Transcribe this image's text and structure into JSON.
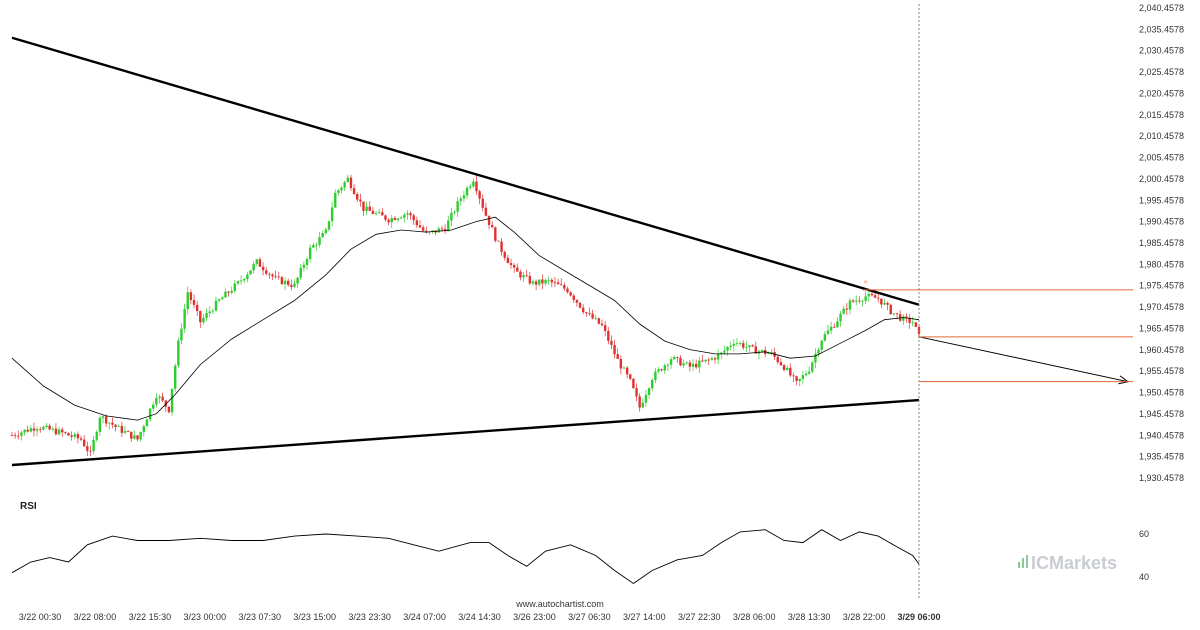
{
  "chart_data": [
    {
      "type": "candlestick",
      "title": "",
      "x_tick_labels": [
        "3/22 00:30",
        "3/22 08:00",
        "3/22 15:30",
        "3/23 00:00",
        "3/23 07:30",
        "3/23 15:00",
        "3/23 23:30",
        "3/24 07:00",
        "3/24 14:30",
        "3/26 23:00",
        "3/27 06:30",
        "3/27 14:00",
        "3/27 22:30",
        "3/28 06:00",
        "3/28 13:30",
        "3/28 22:00",
        "3/29 06:00"
      ],
      "y_tick_labels": [
        "2,040.4578",
        "2,035.4578",
        "2,030.4578",
        "2,025.4578",
        "2,020.4578",
        "2,015.4578",
        "2,010.4578",
        "2,005.4578",
        "2,000.4578",
        "1,995.4578",
        "1,990.4578",
        "1,985.4578",
        "1,980.4578",
        "1,975.4578",
        "1,970.4578",
        "1,965.4578",
        "1,960.4578",
        "1,955.4578",
        "1,950.4578",
        "1,945.4578",
        "1,940.4578",
        "1,935.4578",
        "1,930.4578"
      ],
      "ylim": [
        1927.4578,
        2041.4578
      ],
      "grid": false,
      "up_color": "#2ecc2e",
      "down_color": "#e03030",
      "price_path": [
        {
          "x": 0,
          "p": 1940.5
        },
        {
          "x": 8,
          "p": 1942.5
        },
        {
          "x": 16,
          "p": 1941.0
        },
        {
          "x": 22,
          "p": 1939.5
        },
        {
          "x": 25,
          "p": 1936.0
        },
        {
          "x": 28,
          "p": 1945.0
        },
        {
          "x": 34,
          "p": 1942.0
        },
        {
          "x": 40,
          "p": 1939.5
        },
        {
          "x": 46,
          "p": 1950.0
        },
        {
          "x": 50,
          "p": 1946.5
        },
        {
          "x": 53,
          "p": 1962.0
        },
        {
          "x": 56,
          "p": 1974.0
        },
        {
          "x": 60,
          "p": 1967.0
        },
        {
          "x": 66,
          "p": 1972.0
        },
        {
          "x": 72,
          "p": 1976.0
        },
        {
          "x": 78,
          "p": 1981.0
        },
        {
          "x": 84,
          "p": 1977.0
        },
        {
          "x": 90,
          "p": 1975.5
        },
        {
          "x": 95,
          "p": 1984.0
        },
        {
          "x": 100,
          "p": 1988.0
        },
        {
          "x": 103,
          "p": 1997.0
        },
        {
          "x": 107,
          "p": 2000.5
        },
        {
          "x": 112,
          "p": 1993.5
        },
        {
          "x": 120,
          "p": 1991.0
        },
        {
          "x": 126,
          "p": 1992.5
        },
        {
          "x": 132,
          "p": 1987.5
        },
        {
          "x": 138,
          "p": 1989.0
        },
        {
          "x": 143,
          "p": 1996.0
        },
        {
          "x": 147,
          "p": 2000.5
        },
        {
          "x": 151,
          "p": 1992.0
        },
        {
          "x": 155,
          "p": 1985.0
        },
        {
          "x": 160,
          "p": 1979.0
        },
        {
          "x": 166,
          "p": 1976.0
        },
        {
          "x": 171,
          "p": 1976.5
        },
        {
          "x": 177,
          "p": 1974.5
        },
        {
          "x": 183,
          "p": 1969.0
        },
        {
          "x": 188,
          "p": 1966.0
        },
        {
          "x": 193,
          "p": 1958.0
        },
        {
          "x": 197,
          "p": 1953.0
        },
        {
          "x": 200,
          "p": 1947.0
        },
        {
          "x": 204,
          "p": 1954.0
        },
        {
          "x": 210,
          "p": 1958.5
        },
        {
          "x": 216,
          "p": 1956.5
        },
        {
          "x": 222,
          "p": 1958.0
        },
        {
          "x": 226,
          "p": 1959.5
        },
        {
          "x": 230,
          "p": 1962.5
        },
        {
          "x": 236,
          "p": 1960.5
        },
        {
          "x": 242,
          "p": 1959.5
        },
        {
          "x": 246,
          "p": 1956.5
        },
        {
          "x": 250,
          "p": 1952.5
        },
        {
          "x": 254,
          "p": 1956.0
        },
        {
          "x": 258,
          "p": 1963.0
        },
        {
          "x": 262,
          "p": 1966.5
        },
        {
          "x": 267,
          "p": 1971.5
        },
        {
          "x": 272,
          "p": 1973.0
        },
        {
          "x": 276,
          "p": 1972.5
        },
        {
          "x": 280,
          "p": 1969.5
        },
        {
          "x": 284,
          "p": 1967.5
        },
        {
          "x": 287,
          "p": 1967.0
        },
        {
          "x": 289,
          "p": 1963.5
        }
      ],
      "moving_average": [
        {
          "x": 0,
          "p": 1958.5
        },
        {
          "x": 10,
          "p": 1952.0
        },
        {
          "x": 20,
          "p": 1947.5
        },
        {
          "x": 30,
          "p": 1945.0
        },
        {
          "x": 40,
          "p": 1944.0
        },
        {
          "x": 46,
          "p": 1945.5
        },
        {
          "x": 52,
          "p": 1950.0
        },
        {
          "x": 60,
          "p": 1957.0
        },
        {
          "x": 70,
          "p": 1963.0
        },
        {
          "x": 80,
          "p": 1967.5
        },
        {
          "x": 90,
          "p": 1972.0
        },
        {
          "x": 100,
          "p": 1978.0
        },
        {
          "x": 108,
          "p": 1984.0
        },
        {
          "x": 116,
          "p": 1987.5
        },
        {
          "x": 124,
          "p": 1988.5
        },
        {
          "x": 132,
          "p": 1988.0
        },
        {
          "x": 140,
          "p": 1988.5
        },
        {
          "x": 148,
          "p": 1990.5
        },
        {
          "x": 154,
          "p": 1991.5
        },
        {
          "x": 160,
          "p": 1988.0
        },
        {
          "x": 168,
          "p": 1982.5
        },
        {
          "x": 176,
          "p": 1979.0
        },
        {
          "x": 184,
          "p": 1975.5
        },
        {
          "x": 192,
          "p": 1972.0
        },
        {
          "x": 200,
          "p": 1966.5
        },
        {
          "x": 208,
          "p": 1962.5
        },
        {
          "x": 216,
          "p": 1960.5
        },
        {
          "x": 224,
          "p": 1959.5
        },
        {
          "x": 232,
          "p": 1959.5
        },
        {
          "x": 240,
          "p": 1960.0
        },
        {
          "x": 248,
          "p": 1958.5
        },
        {
          "x": 256,
          "p": 1959.0
        },
        {
          "x": 264,
          "p": 1962.0
        },
        {
          "x": 272,
          "p": 1965.0
        },
        {
          "x": 278,
          "p": 1967.5
        },
        {
          "x": 284,
          "p": 1968.0
        },
        {
          "x": 289,
          "p": 1967.5
        }
      ],
      "ma_color": "#000000",
      "trend_lines": [
        {
          "name": "upper-resistance",
          "x1": 0,
          "p1": 2033.5,
          "x2": 289,
          "p2": 1971.0
        },
        {
          "name": "lower-support",
          "x1": 0,
          "p1": 1933.5,
          "x2": 289,
          "p2": 1948.7
        },
        {
          "name": "forecast-arrow",
          "x1": 289,
          "p1": 1963.5,
          "x2": 355,
          "p2": 1953.0
        }
      ],
      "horizontal_levels": [
        {
          "name": "level-high",
          "p": 1974.5,
          "color": "#e06a3a"
        },
        {
          "name": "level-current",
          "p": 1963.5,
          "color": "#e06a3a"
        },
        {
          "name": "level-target",
          "p": 1953.0,
          "color": "#e06a3a"
        }
      ],
      "pattern_marker": {
        "x": 272,
        "p": 1975.7,
        "glyph": "^",
        "color": "#e06a3a"
      },
      "current_bar_x": 289
    },
    {
      "type": "line",
      "title": "RSI",
      "y_tick_labels": [
        "60",
        "40"
      ],
      "ylim": [
        32,
        70
      ],
      "grid": false,
      "series": [
        {
          "values": [
            {
              "x": 0,
              "v": 42
            },
            {
              "x": 6,
              "v": 47
            },
            {
              "x": 12,
              "v": 49
            },
            {
              "x": 18,
              "v": 47
            },
            {
              "x": 24,
              "v": 55
            },
            {
              "x": 32,
              "v": 59
            },
            {
              "x": 40,
              "v": 57
            },
            {
              "x": 50,
              "v": 57
            },
            {
              "x": 60,
              "v": 58
            },
            {
              "x": 70,
              "v": 57
            },
            {
              "x": 80,
              "v": 57
            },
            {
              "x": 90,
              "v": 59
            },
            {
              "x": 100,
              "v": 60
            },
            {
              "x": 110,
              "v": 59
            },
            {
              "x": 120,
              "v": 58
            },
            {
              "x": 128,
              "v": 55
            },
            {
              "x": 136,
              "v": 52
            },
            {
              "x": 146,
              "v": 56
            },
            {
              "x": 152,
              "v": 56
            },
            {
              "x": 158,
              "v": 50
            },
            {
              "x": 164,
              "v": 45
            },
            {
              "x": 170,
              "v": 52
            },
            {
              "x": 178,
              "v": 55
            },
            {
              "x": 186,
              "v": 50
            },
            {
              "x": 192,
              "v": 43
            },
            {
              "x": 198,
              "v": 37
            },
            {
              "x": 204,
              "v": 43
            },
            {
              "x": 212,
              "v": 48
            },
            {
              "x": 220,
              "v": 50
            },
            {
              "x": 226,
              "v": 56
            },
            {
              "x": 232,
              "v": 61
            },
            {
              "x": 240,
              "v": 62
            },
            {
              "x": 246,
              "v": 57
            },
            {
              "x": 252,
              "v": 56
            },
            {
              "x": 258,
              "v": 62
            },
            {
              "x": 264,
              "v": 57
            },
            {
              "x": 270,
              "v": 61
            },
            {
              "x": 276,
              "v": 59
            },
            {
              "x": 282,
              "v": 54
            },
            {
              "x": 287,
              "v": 50
            },
            {
              "x": 289,
              "v": 46
            }
          ]
        }
      ]
    }
  ],
  "watermark": {
    "text": "www.autochartist.com"
  },
  "logo": {
    "text": "ICMarkets"
  },
  "colors": {
    "background": "#ffffff",
    "axis_text": "#333333",
    "logo_gray": "#c9ccd0",
    "logo_green": "#8fc89a"
  }
}
